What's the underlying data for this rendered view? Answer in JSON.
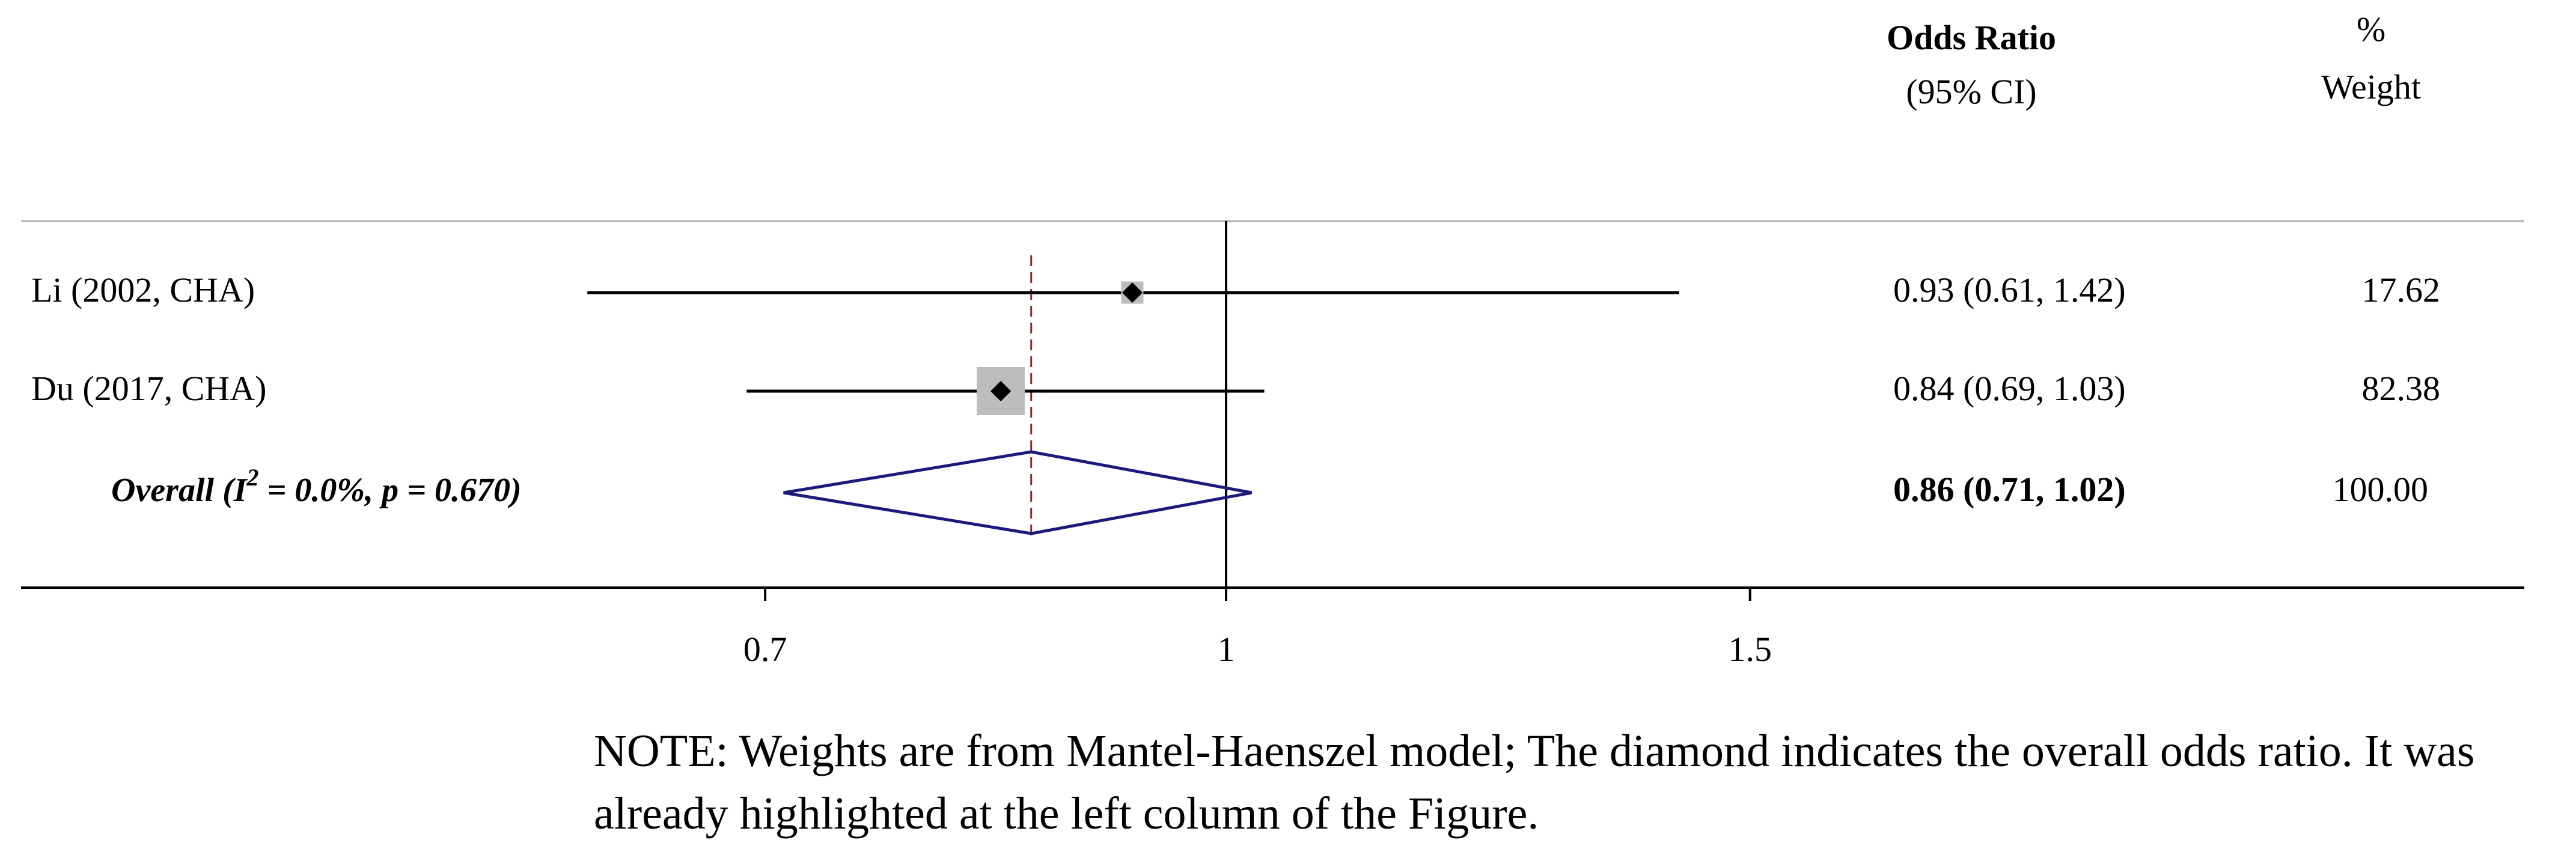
{
  "chart_data": {
    "type": "forest",
    "header": {
      "effect_title": "Odds Ratio",
      "effect_subtitle": "(95% CI)",
      "weight_title": "%",
      "weight_subtitle": "Weight"
    },
    "studies": [
      {
        "label": "Li (2002, CHA)",
        "or": 0.93,
        "lower": 0.61,
        "upper": 1.42,
        "ci_text": "0.93 (0.61, 1.42)",
        "weight": 17.62,
        "weight_text": "17.62"
      },
      {
        "label": "Du (2017, CHA)",
        "or": 0.84,
        "lower": 0.69,
        "upper": 1.03,
        "ci_text": "0.84 (0.69, 1.03)",
        "weight": 82.38,
        "weight_text": "82.38"
      }
    ],
    "overall": {
      "label_prefix": "Overall (I",
      "label_sup": "2",
      "label_suffix": " = 0.0%, p = 0.670)",
      "or": 0.86,
      "lower": 0.71,
      "upper": 1.02,
      "ci_text": "0.86 (0.71, 1.02)",
      "weight_text": "100.00"
    },
    "x_axis": {
      "scale": "log",
      "ticks": [
        0.7,
        1,
        1.5
      ],
      "tick_labels": [
        "0.7",
        "1",
        "1.5"
      ],
      "null_line": 1
    },
    "colors": {
      "ci_line": "#000000",
      "weight_box": "#bdbdbd",
      "point": "#000000",
      "diamond": "#1a1a7a",
      "overall_line": "#8b2a2a",
      "rule": "#bfbfbf"
    }
  },
  "note": "NOTE: Weights are from Mantel-Haenszel model; The diamond indicates the overall odds ratio. It was already highlighted at the left column of the Figure."
}
